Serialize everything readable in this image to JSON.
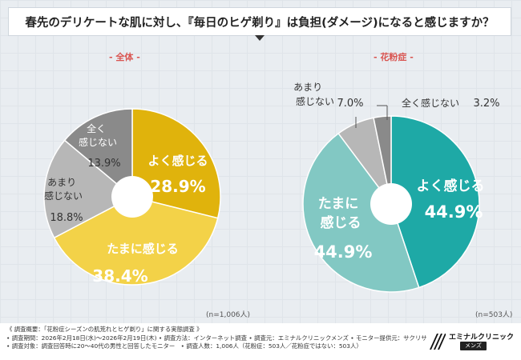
{
  "title": "春先のデリケートな肌に対し、『毎日のヒゲ剃り』は負担(ダメージ)になると感じますか？",
  "chart_data": [
    {
      "type": "pie",
      "title": "- 全体 -",
      "sample_size": "(n=1,006人)",
      "slices": [
        {
          "label": "よく感じる",
          "value": 28.9,
          "value_text": "28.9%",
          "color": "#e0b30c"
        },
        {
          "label": "たまに感じる",
          "value": 38.4,
          "value_text": "38.4%",
          "color": "#f3d248"
        },
        {
          "label": "あまり感じない",
          "value": 18.8,
          "value_text": "18.8%",
          "color": "#b7b7b7"
        },
        {
          "label": "全く感じない",
          "value": 13.9,
          "value_text": "13.9%",
          "color": "#8a8a8a"
        }
      ]
    },
    {
      "type": "pie",
      "title": "- 花粉症 -",
      "sample_size": "(n=503人)",
      "slices": [
        {
          "label": "よく感じる",
          "value": 44.9,
          "value_text": "44.9%",
          "color": "#1ea9a6"
        },
        {
          "label": "たまに感じる",
          "value": 44.9,
          "value_text": "44.9%",
          "color": "#82c8c3"
        },
        {
          "label": "あまり感じない",
          "value": 7.0,
          "value_text": "7.0%",
          "color": "#b7b7b7"
        },
        {
          "label": "全く感じない",
          "value": 3.2,
          "value_text": "3.2%",
          "color": "#8a8a8a"
        }
      ]
    }
  ],
  "footer": {
    "notes": [
      "《 調査概要：「花粉症シーズンの肌荒れとヒゲ剃り」に関する実態調査 》",
      "• 調査期間：2026年2月18日(水)～2026年2月19日(木) • 調査方法：インターネット調査 • 調査元：エミナルクリニックメンズ • モニター提供元：サクリサ",
      "• 調査対象：調査回答時に20～40代の男性と回答したモニター　• 調査人数：1,006人（花粉症：503人／花粉症ではない：503人）"
    ],
    "logo_name": "エミナルクリニック",
    "logo_sub": "メンズ"
  }
}
